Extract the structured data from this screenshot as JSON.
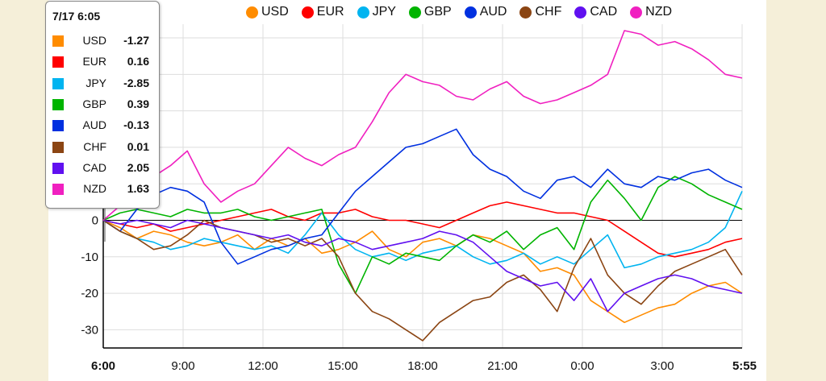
{
  "chart_data": {
    "type": "line",
    "x_ticks": [
      "6:00",
      "9:00",
      "12:00",
      "15:00",
      "18:00",
      "21:00",
      "0:00",
      "3:00",
      "5:55"
    ],
    "bold_x_ticks": [
      "6:00",
      "5:55"
    ],
    "y_ticks": [
      -30,
      -20,
      -10,
      0,
      10,
      20,
      30,
      40,
      50
    ],
    "ylim": [
      -35,
      52
    ],
    "grid": true,
    "series": [
      {
        "name": "USD",
        "color": "#ff8c00",
        "values": [
          0,
          -2,
          -5,
          -3,
          -4,
          -6,
          -7,
          -6,
          -4,
          -8,
          -5,
          -7,
          -5,
          -9,
          -8,
          -6,
          -3,
          -8,
          -10,
          -6,
          -5,
          -7,
          -4,
          -5,
          -7,
          -9,
          -14,
          -13,
          -15,
          -22,
          -25,
          -28,
          -26,
          -24,
          -23,
          -20,
          -18,
          -17,
          -20
        ]
      },
      {
        "name": "EUR",
        "color": "#ff0000",
        "values": [
          0,
          -1,
          -2,
          -1,
          -3,
          -2,
          -1,
          0,
          1,
          2,
          3,
          1,
          0,
          2,
          2,
          3,
          1,
          0,
          0,
          -1,
          -2,
          0,
          2,
          4,
          5,
          4,
          3,
          2,
          2,
          1,
          0,
          -3,
          -6,
          -9,
          -10,
          -9,
          -8,
          -6,
          -5
        ]
      },
      {
        "name": "JPY",
        "color": "#00b4f0",
        "values": [
          0,
          -3,
          -5,
          -6,
          -8,
          -7,
          -5,
          -6,
          -7,
          -8,
          -7,
          -9,
          -4,
          2,
          -4,
          -8,
          -10,
          -9,
          -11,
          -9,
          -8,
          -7,
          -10,
          -12,
          -11,
          -9,
          -12,
          -10,
          -12,
          -8,
          -4,
          -13,
          -12,
          -10,
          -9,
          -8,
          -6,
          -2,
          8
        ]
      },
      {
        "name": "GBP",
        "color": "#00b400",
        "values": [
          0,
          2,
          3,
          2,
          1,
          3,
          2,
          2,
          3,
          1,
          0,
          1,
          2,
          3,
          -12,
          -20,
          -10,
          -12,
          -9,
          -10,
          -11,
          -7,
          -4,
          -6,
          -3,
          -8,
          -4,
          -2,
          -8,
          5,
          11,
          6,
          0,
          9,
          12,
          10,
          7,
          5,
          3
        ]
      },
      {
        "name": "AUD",
        "color": "#0030e0",
        "values": [
          0,
          -3,
          3,
          7,
          9,
          8,
          5,
          -6,
          -12,
          -10,
          -8,
          -7,
          -5,
          -4,
          2,
          8,
          12,
          16,
          20,
          21,
          23,
          25,
          18,
          14,
          12,
          8,
          6,
          11,
          12,
          9,
          14,
          10,
          9,
          12,
          11,
          13,
          14,
          11,
          9
        ]
      },
      {
        "name": "CHF",
        "color": "#8b4513",
        "values": [
          0,
          -3,
          -5,
          -8,
          -7,
          -4,
          0,
          -2,
          -3,
          -4,
          -6,
          -5,
          -7,
          -5,
          -10,
          -20,
          -25,
          -27,
          -30,
          -33,
          -28,
          -25,
          -22,
          -21,
          -17,
          -15,
          -19,
          -25,
          -13,
          -5,
          -15,
          -20,
          -23,
          -18,
          -14,
          -12,
          -10,
          -8,
          -15
        ]
      },
      {
        "name": "CAD",
        "color": "#6010f0",
        "values": [
          0,
          -1,
          0,
          -1,
          -2,
          0,
          -1,
          -2,
          -3,
          -4,
          -5,
          -4,
          -6,
          -7,
          -5,
          -6,
          -8,
          -7,
          -6,
          -5,
          -3,
          -4,
          -6,
          -10,
          -14,
          -16,
          -18,
          -17,
          -22,
          -16,
          -25,
          -20,
          -18,
          -16,
          -15,
          -16,
          -18,
          -19,
          -20
        ]
      },
      {
        "name": "NZD",
        "color": "#f020c0",
        "values": [
          0,
          4,
          8,
          12,
          15,
          19,
          10,
          5,
          8,
          10,
          15,
          20,
          17,
          15,
          18,
          20,
          27,
          35,
          40,
          38,
          37,
          34,
          33,
          36,
          38,
          34,
          32,
          33,
          35,
          37,
          40,
          52,
          51,
          48,
          49,
          47,
          44,
          40,
          39
        ]
      }
    ]
  },
  "tooltip": {
    "title": "7/17 6:05",
    "rows": [
      {
        "name": "USD",
        "value": "-1.27",
        "color": "#ff8c00"
      },
      {
        "name": "EUR",
        "value": "0.16",
        "color": "#ff0000"
      },
      {
        "name": "JPY",
        "value": "-2.85",
        "color": "#00b4f0"
      },
      {
        "name": "GBP",
        "value": "0.39",
        "color": "#00b400"
      },
      {
        "name": "AUD",
        "value": "-0.13",
        "color": "#0030e0"
      },
      {
        "name": "CHF",
        "value": "0.01",
        "color": "#8b4513"
      },
      {
        "name": "CAD",
        "value": "2.05",
        "color": "#6010f0"
      },
      {
        "name": "NZD",
        "value": "1.63",
        "color": "#f020c0"
      }
    ]
  },
  "colors": {
    "page_bg": "#f5efd9",
    "plot_bg": "#ffffff",
    "grid": "#dddddd",
    "zero_line": "#000000"
  }
}
